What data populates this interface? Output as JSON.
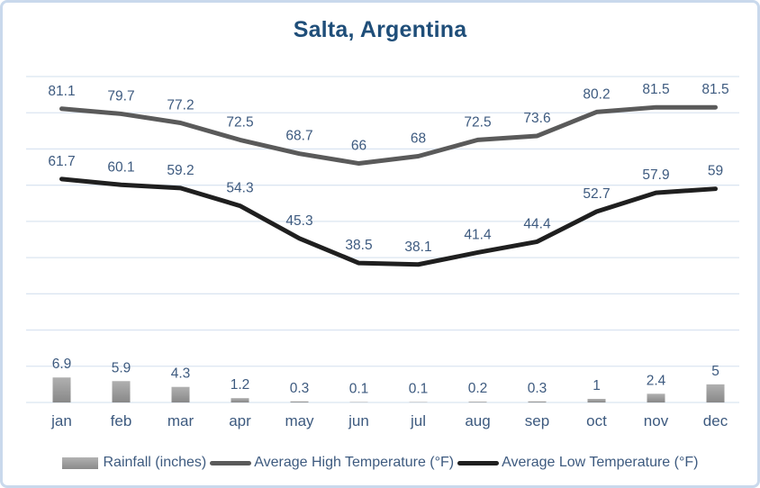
{
  "title": "Salta, Argentina",
  "chart_data": {
    "type": "combo",
    "title": "Salta, Argentina",
    "categories": [
      "jan",
      "feb",
      "mar",
      "apr",
      "may",
      "jun",
      "jul",
      "aug",
      "sep",
      "oct",
      "nov",
      "dec"
    ],
    "series": [
      {
        "name": "Rainfall (inches)",
        "type": "bar",
        "values": [
          6.9,
          5.9,
          4.3,
          1.2,
          0.3,
          0.1,
          0.1,
          0.2,
          0.3,
          1,
          2.4,
          5
        ],
        "color": "#9a9a9a"
      },
      {
        "name": "Average High Temperature (°F)",
        "type": "line",
        "values": [
          81.1,
          79.7,
          77.2,
          72.5,
          68.7,
          66,
          68,
          72.5,
          73.6,
          80.2,
          81.5,
          81.5
        ],
        "color": "#5a5a5a"
      },
      {
        "name": "Average Low Temperature (°F)",
        "type": "line",
        "values": [
          61.7,
          60.1,
          59.2,
          54.3,
          45.3,
          38.5,
          38.1,
          41.4,
          44.4,
          52.7,
          57.9,
          59
        ],
        "color": "#1f1f1f"
      }
    ],
    "ylim": [
      0,
      90
    ],
    "gridline_step": 10,
    "grid": true,
    "y_axis_labels_visible": false,
    "data_labels_visible": true,
    "legend_position": "bottom"
  },
  "colors": {
    "title": "#1f4e79",
    "data_label": "#3d5a7f",
    "gridline": "#dbe5f1",
    "frame_border": "#c9d9ec",
    "bar_top": "#b0b0b0",
    "bar_bottom": "#888888",
    "high_line": "#5a5a5a",
    "low_line": "#1f1f1f"
  }
}
